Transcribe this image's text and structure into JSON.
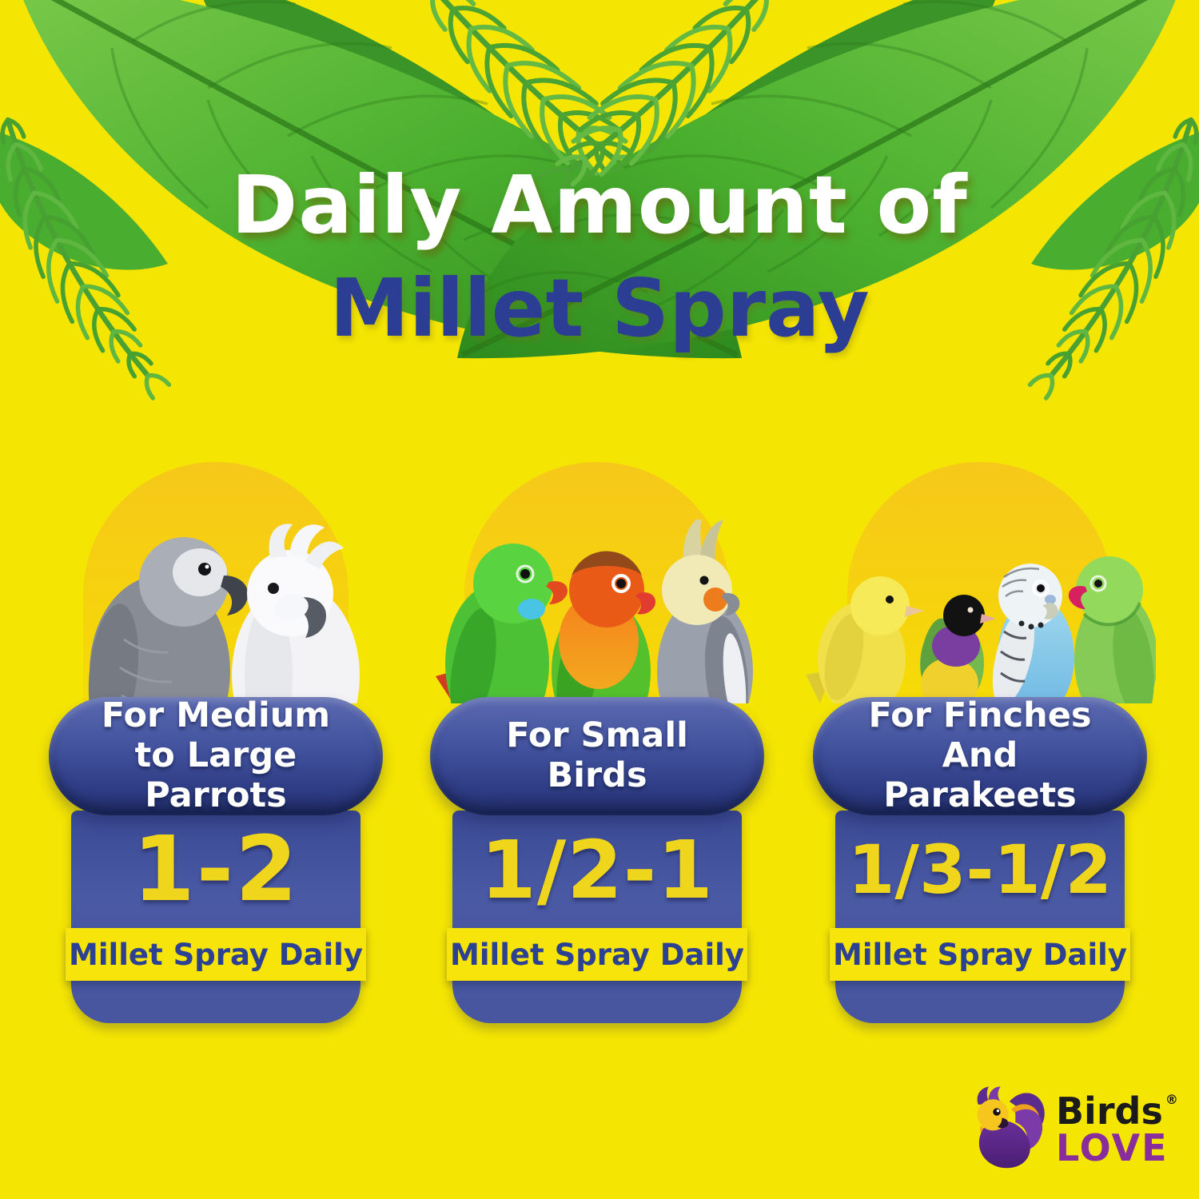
{
  "header": {
    "line1": "Daily Amount of",
    "line2": "Millet Spray"
  },
  "cards": [
    {
      "label": "For Medium to Large Parrots",
      "amount": "1-2",
      "unit": "Millet Spray Daily",
      "birds": [
        "african-grey-parrot",
        "white-cockatoo"
      ]
    },
    {
      "label": "For Small Birds",
      "amount": "1/2-1",
      "unit": "Millet Spray Daily",
      "birds": [
        "green-parrot",
        "lovebird",
        "cockatiel"
      ]
    },
    {
      "label": "For Finches And Parakeets",
      "amount": "1/3-1/2",
      "unit": "Millet Spray Daily",
      "birds": [
        "canary",
        "gouldian-finch",
        "budgerigar",
        "ringneck-parakeet"
      ]
    }
  ],
  "logo": {
    "brand": "Birds",
    "registered": "®",
    "brand_secondary": "LOVE"
  },
  "colors": {
    "background": "#f5e503",
    "arch_gold": "#f6c81a",
    "card_blue": "#41519d",
    "title_white": "#ffffff",
    "title_blue": "#2b3e94",
    "amount_yellow": "#efd51c",
    "band_yellow": "#f6e40b",
    "band_text_blue": "#2c4191",
    "logo_black": "#1b1b1b",
    "logo_purple": "#8a2d9c",
    "leaf_green": "#3a9427"
  }
}
